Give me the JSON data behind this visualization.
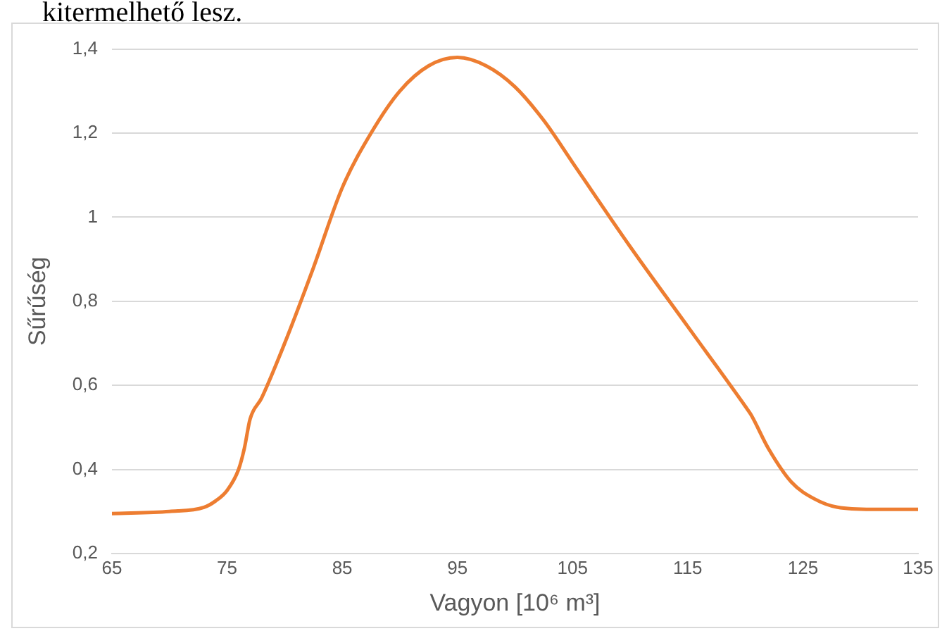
{
  "chart_data": {
    "type": "line",
    "xlabel": "Vagyon [10⁶ m³]",
    "ylabel": "Sűrűség",
    "annotations": [
      "kitermelhető lesz."
    ],
    "x": [
      65,
      70,
      73,
      74,
      75,
      76,
      76.5,
      77,
      78,
      80,
      82.5,
      85,
      87.5,
      90,
      92.5,
      95,
      97.5,
      100,
      102.5,
      105,
      110,
      115,
      120,
      120.5,
      122,
      124,
      126,
      128,
      131,
      135
    ],
    "series": [
      {
        "color": "#ed7d31",
        "values": [
          0.295,
          0.3,
          0.31,
          0.325,
          0.35,
          0.4,
          0.45,
          0.52,
          0.57,
          0.7,
          0.88,
          1.07,
          1.2,
          1.3,
          1.36,
          1.38,
          1.36,
          1.31,
          1.23,
          1.13,
          0.93,
          0.74,
          0.55,
          0.53,
          0.45,
          0.37,
          0.33,
          0.31,
          0.305,
          0.305
        ]
      }
    ],
    "xlim": [
      65,
      135
    ],
    "xticks": [
      65,
      75,
      85,
      95,
      105,
      115,
      125,
      135
    ],
    "ylim": [
      0.2,
      1.4
    ],
    "yticks": [
      {
        "value": 0.2,
        "label": "0,2"
      },
      {
        "value": 0.4,
        "label": "0,4"
      },
      {
        "value": 0.6,
        "label": "0,6"
      },
      {
        "value": 0.8,
        "label": "0,8"
      },
      {
        "value": 1,
        "label": "1"
      },
      {
        "value": 1.2,
        "label": "1,2"
      },
      {
        "value": 1.4,
        "label": "1,4"
      }
    ],
    "grid": "y",
    "legend": false,
    "marker": "none",
    "line_style": "solid"
  }
}
